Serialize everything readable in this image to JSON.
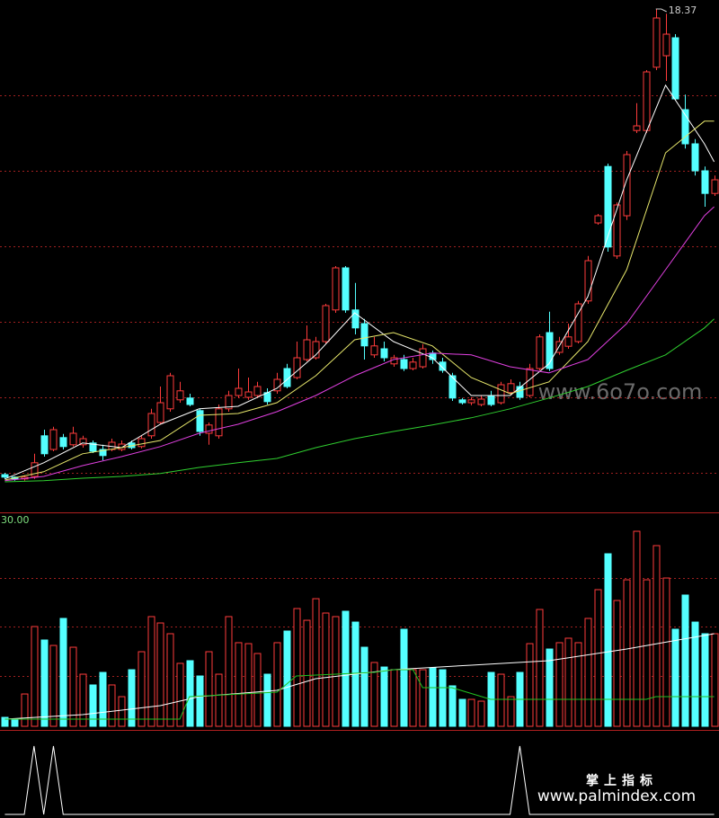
{
  "chart_data": [
    {
      "type": "candlestick",
      "up_color": "#ff3c3c",
      "down_color": "#54ffff",
      "open": [
        5.42,
        5.35,
        5.3,
        5.37,
        6.5,
        6.12,
        6.45,
        6.25,
        6.25,
        6.3,
        6.12,
        6.12,
        6.12,
        6.3,
        6.2,
        6.5,
        6.87,
        7.25,
        7.5,
        7.55,
        7.2,
        6.57,
        6.5,
        7.25,
        7.62,
        7.57,
        7.62,
        7.7,
        7.75,
        8.37,
        8.12,
        8.62,
        8.67,
        9.12,
        10.0,
        11.17,
        10.0,
        9.62,
        8.75,
        8.92,
        8.5,
        8.62,
        8.37,
        8.42,
        8.8,
        8.55,
        8.17,
        7.5,
        7.42,
        7.37,
        7.62,
        7.42,
        7.7,
        7.87,
        7.62,
        8.37,
        9.37,
        8.82,
        8.99,
        9.12,
        10.25,
        12.42,
        13.99,
        11.5,
        12.62,
        14.99,
        14.99,
        16.75,
        17.07,
        17.57,
        15.57,
        14.62,
        13.87,
        13.24
      ],
      "high": [
        5.47,
        5.37,
        5.4,
        6.0,
        6.67,
        6.75,
        6.55,
        6.75,
        6.5,
        6.37,
        6.25,
        6.42,
        6.37,
        6.37,
        6.5,
        7.25,
        7.87,
        8.25,
        8.0,
        7.67,
        7.25,
        6.87,
        7.37,
        7.75,
        8.37,
        8.12,
        8.0,
        7.82,
        8.25,
        8.5,
        9.12,
        9.57,
        9.25,
        10.17,
        11.22,
        11.22,
        10.75,
        9.75,
        9.25,
        9.12,
        8.75,
        8.75,
        8.67,
        9.05,
        8.87,
        8.67,
        8.25,
        7.55,
        7.57,
        7.62,
        7.75,
        8.0,
        8.07,
        8.0,
        8.5,
        9.32,
        9.95,
        9.25,
        9.62,
        10.25,
        11.5,
        12.67,
        14.07,
        12.99,
        14.42,
        15.75,
        16.67,
        18.37,
        18.24,
        17.67,
        15.99,
        14.75,
        13.99,
        13.74
      ],
      "low": [
        5.3,
        5.25,
        5.25,
        5.3,
        5.92,
        6.07,
        6.12,
        6.2,
        6.17,
        6.02,
        5.82,
        6.07,
        6.07,
        6.12,
        6.15,
        6.42,
        6.82,
        7.17,
        7.42,
        7.32,
        6.5,
        6.25,
        6.42,
        7.17,
        7.55,
        7.5,
        7.55,
        7.37,
        7.67,
        7.82,
        8.07,
        8.57,
        8.62,
        9.07,
        9.92,
        9.92,
        9.32,
        8.62,
        8.67,
        8.57,
        8.42,
        8.3,
        8.32,
        8.37,
        8.5,
        8.25,
        7.47,
        7.37,
        7.35,
        7.32,
        7.32,
        7.37,
        7.62,
        7.5,
        7.57,
        8.32,
        8.3,
        8.75,
        8.92,
        9.07,
        10.17,
        12.37,
        11.62,
        11.42,
        12.5,
        14.92,
        14.92,
        16.67,
        16.37,
        15.82,
        14.49,
        13.74,
        12.87,
        13.17
      ],
      "close": [
        5.35,
        5.3,
        5.35,
        5.75,
        6.0,
        6.67,
        6.2,
        6.57,
        6.42,
        6.07,
        5.95,
        6.32,
        6.27,
        6.17,
        6.42,
        7.12,
        7.42,
        8.17,
        7.75,
        7.37,
        6.62,
        6.8,
        7.25,
        7.62,
        7.82,
        7.72,
        7.87,
        7.45,
        8.07,
        7.87,
        8.67,
        9.17,
        9.12,
        10.12,
        11.17,
        10.0,
        9.5,
        9.0,
        9.0,
        8.67,
        8.67,
        8.37,
        8.55,
        8.92,
        8.62,
        8.32,
        7.55,
        7.42,
        7.5,
        7.52,
        7.37,
        7.92,
        7.95,
        7.57,
        8.37,
        9.25,
        8.37,
        9.12,
        9.25,
        10.17,
        11.37,
        12.62,
        11.75,
        12.92,
        14.32,
        15.12,
        16.62,
        18.12,
        17.67,
        15.87,
        14.62,
        13.87,
        13.24,
        13.62
      ],
      "ylim": [
        4.37,
        18.62
      ],
      "gridlines": [
        15.97,
        13.87,
        11.77,
        9.67,
        7.57,
        5.47
      ],
      "grid_color": "#a02020",
      "series": [
        {
          "color": "#ffffff",
          "x": [
            0,
            4,
            8,
            12,
            16,
            20,
            24,
            28,
            32,
            36,
            40,
            44,
            48,
            52,
            56,
            60,
            64,
            68,
            72,
            73
          ],
          "values": [
            5.3,
            5.75,
            6.3,
            6.17,
            6.82,
            7.25,
            7.32,
            7.82,
            8.75,
            9.92,
            9.12,
            8.67,
            7.62,
            7.62,
            8.5,
            10.37,
            13.62,
            16.25,
            14.62,
            14.12
          ]
        },
        {
          "color": "#e8e86c",
          "x": [
            0,
            4,
            8,
            12,
            16,
            20,
            24,
            28,
            32,
            36,
            40,
            44,
            48,
            52,
            56,
            60,
            64,
            68,
            72,
            73
          ],
          "values": [
            5.27,
            5.5,
            6.0,
            6.17,
            6.37,
            7.07,
            7.12,
            7.42,
            8.17,
            9.17,
            9.37,
            9.0,
            8.12,
            7.67,
            8.0,
            9.12,
            11.12,
            14.37,
            15.25,
            15.25
          ]
        },
        {
          "color": "#e040e0",
          "x": [
            0,
            4,
            8,
            12,
            16,
            20,
            24,
            28,
            32,
            36,
            40,
            44,
            48,
            52,
            56,
            60,
            64,
            68,
            72,
            73
          ],
          "values": [
            5.25,
            5.37,
            5.67,
            5.92,
            6.2,
            6.57,
            6.82,
            7.17,
            7.62,
            8.17,
            8.62,
            8.8,
            8.75,
            8.42,
            8.25,
            8.62,
            9.62,
            11.12,
            12.62,
            12.87
          ]
        },
        {
          "color": "#30d030",
          "x": [
            0,
            4,
            8,
            12,
            16,
            20,
            24,
            28,
            32,
            36,
            40,
            44,
            48,
            52,
            56,
            60,
            64,
            68,
            72,
            73
          ],
          "values": [
            5.22,
            5.25,
            5.32,
            5.37,
            5.45,
            5.62,
            5.75,
            5.87,
            6.17,
            6.42,
            6.62,
            6.8,
            7.0,
            7.25,
            7.55,
            7.87,
            8.32,
            8.75,
            9.5,
            9.75
          ]
        }
      ],
      "watermark": "www.6o7o.com"
    },
    {
      "type": "bar",
      "values": [
        1.3,
        1.04,
        4.69,
        14.47,
        12.52,
        11.73,
        15.65,
        11.47,
        7.56,
        6.0,
        7.82,
        6.0,
        4.3,
        8.21,
        10.82,
        15.91,
        14.99,
        13.43,
        9.13,
        9.52,
        7.3,
        10.82,
        7.56,
        15.91,
        12.13,
        11.99,
        10.56,
        7.56,
        12.13,
        13.82,
        17.08,
        15.38,
        18.51,
        16.43,
        15.91,
        16.69,
        15.12,
        11.47,
        9.26,
        8.6,
        8.21,
        14.08,
        8.21,
        8.21,
        8.47,
        8.21,
        5.87,
        3.91,
        3.91,
        3.65,
        7.82,
        7.56,
        4.3,
        7.82,
        11.99,
        16.95,
        11.21,
        12.13,
        12.78,
        12.13,
        15.65,
        19.82,
        25.03,
        18.25,
        21.25,
        28.29,
        21.25,
        26.21,
        21.51,
        14.08,
        19.04,
        15.12,
        13.43,
        13.43
      ],
      "ylim": [
        0,
        30.77
      ],
      "yticks": [
        {
          "value": 30,
          "label": "30.00"
        }
      ],
      "gridlines": [
        21.51,
        14.47,
        7.3
      ],
      "series": [
        {
          "color": "#ffffff",
          "x": [
            0,
            8,
            16,
            20,
            28,
            32,
            40,
            48,
            56,
            64,
            73
          ],
          "values": [
            1.04,
            1.69,
            3.0,
            4.3,
            5.22,
            6.91,
            8.21,
            8.87,
            9.52,
            11.21,
            13.43
          ]
        },
        {
          "color": "#20c020",
          "x": [
            0,
            18,
            19,
            28,
            30,
            38,
            40,
            42,
            43,
            46,
            50,
            66,
            67,
            73
          ],
          "values": [
            1.04,
            1.04,
            4.3,
            4.95,
            7.3,
            7.82,
            8.21,
            8.21,
            5.61,
            5.61,
            3.91,
            3.91,
            4.3,
            4.3
          ]
        }
      ]
    },
    {
      "type": "line",
      "color": "#ffffff",
      "values": [
        0,
        0,
        0,
        1,
        0,
        1,
        0,
        0,
        0,
        0,
        0,
        0,
        0,
        0,
        0,
        0,
        0,
        0,
        0,
        0,
        0,
        0,
        0,
        0,
        0,
        0,
        0,
        0,
        0,
        0,
        0,
        0,
        0,
        0,
        0,
        0,
        0,
        0,
        0,
        0,
        0,
        0,
        0,
        0,
        0,
        0,
        0,
        0,
        0,
        0,
        0,
        0,
        0,
        1,
        0,
        0,
        0,
        0,
        0,
        0,
        0,
        0,
        0,
        0,
        0,
        0,
        0,
        0,
        0,
        0,
        0,
        0,
        0,
        0
      ],
      "ylim": [
        0,
        1
      ],
      "brand_name": "掌上指标",
      "brand_url": "www.palmindex.com"
    }
  ]
}
